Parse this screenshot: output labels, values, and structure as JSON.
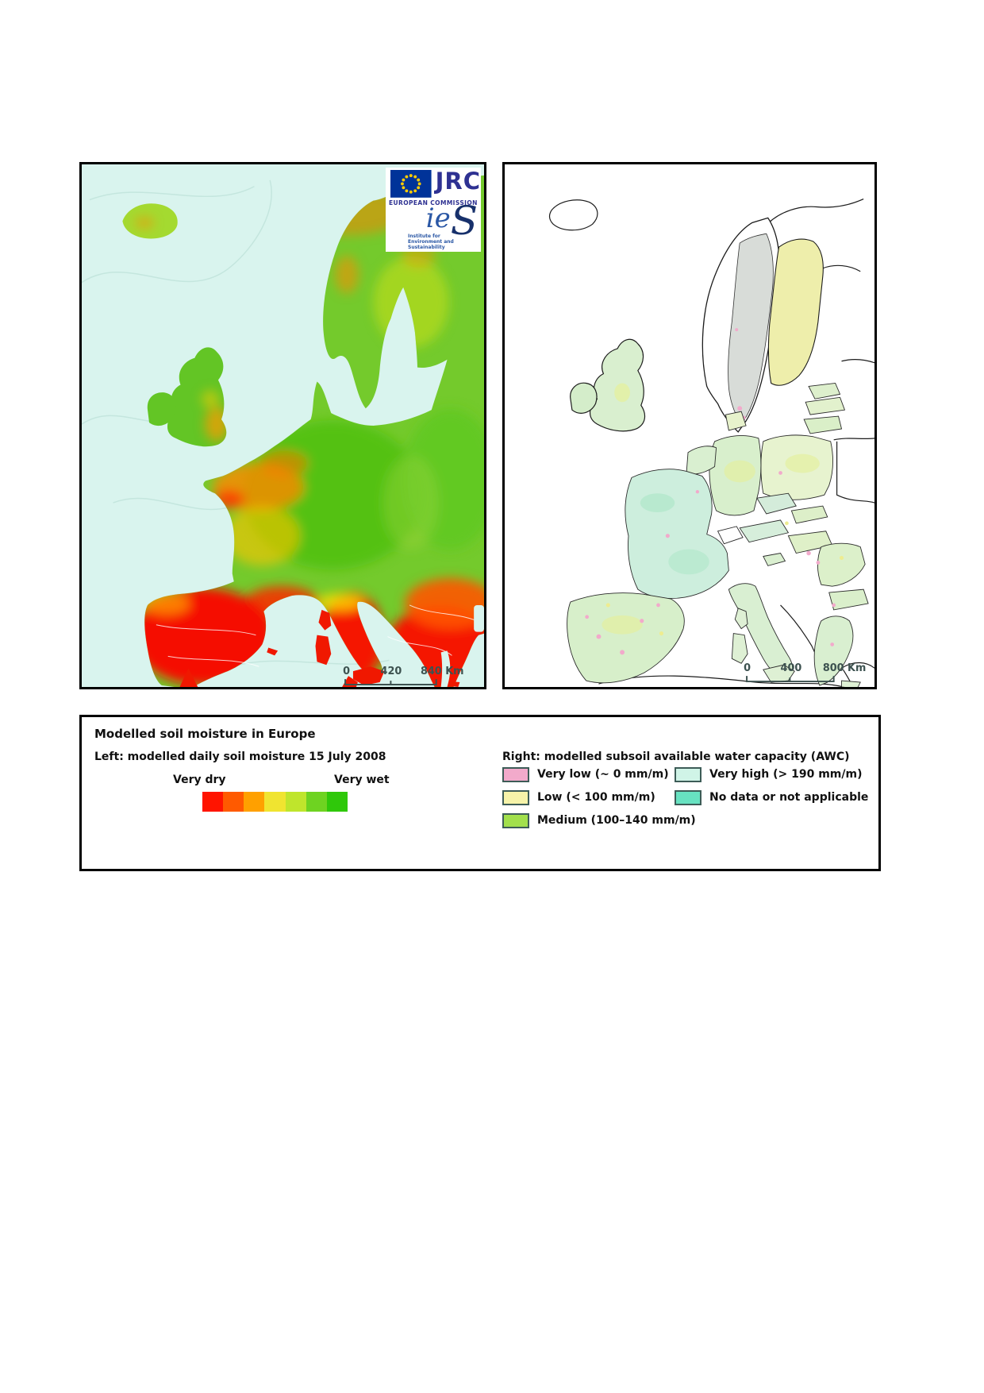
{
  "branding": {
    "jrc": "JRC",
    "european_commission": "EUROPEAN COMMISSION",
    "ies_prefix": "ie",
    "ies_s": "S",
    "ies_subtitle": "Institute for Environment and Sustainability"
  },
  "left_map": {
    "description": "modelled daily soil moisture raster map of Europe",
    "scalebar": {
      "zero": "0",
      "mid": "420",
      "end": "840 Km"
    }
  },
  "right_map": {
    "description": "modelled subsoil available water capacity choropleth map of Europe",
    "scalebar": {
      "zero": "0",
      "mid": "400",
      "end": "800 Km"
    }
  },
  "legend": {
    "title": "Modelled soil moisture in Europe",
    "left_caption": "Left: modelled daily soil moisture 15 July 2008",
    "right_caption": "Right: modelled subsoil available water capacity (AWC)",
    "ramp": {
      "min_label": "Very dry",
      "max_label": "Very wet",
      "colors": [
        "#ff1400",
        "#ff5a00",
        "#ffa000",
        "#f0e430",
        "#bfe52c",
        "#6ed321",
        "#2fc80a"
      ]
    },
    "awc_items": [
      {
        "label": "Very low (~ 0 mm/m)",
        "color": "#f2aacb"
      },
      {
        "label": "Low (< 100 mm/m)",
        "color": "#f6f3a9"
      },
      {
        "label": "Medium (100–140 mm/m)",
        "color": "#a2e04c"
      },
      {
        "label": "Very high (> 190 mm/m)",
        "color": "#d0f4e7"
      },
      {
        "label": "No data or not applicable",
        "color": "#67e2c1"
      }
    ],
    "swatch_border": "#3d5c57"
  },
  "map_colors": {
    "sea": "#d9f4ee",
    "land_wet_green": "#74ca2c",
    "land_dry_red": "#f51000",
    "awc_base_green": "#c9ecd2",
    "sweden_gray": "#d8dcd8",
    "finland_yellow": "#eeeeab"
  }
}
